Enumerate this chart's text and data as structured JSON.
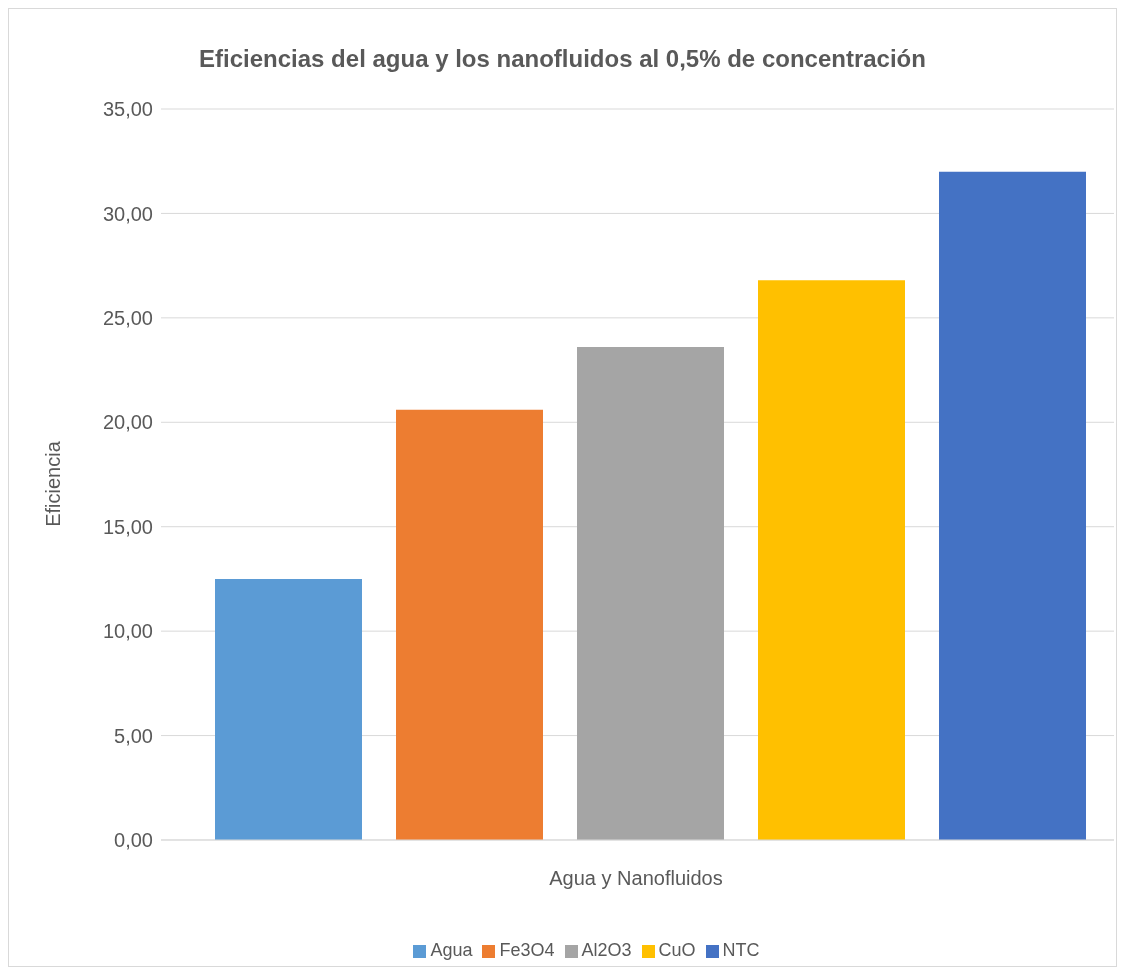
{
  "chart_data": {
    "type": "bar",
    "title": "Eficiencias del agua y los nanofluidos al 0,5% de concentración",
    "xlabel": "Agua y Nanofluidos",
    "ylabel": "Eficiencia",
    "categories": [
      null
    ],
    "series": [
      {
        "name": "Agua",
        "color": "#5b9bd5",
        "values": [
          12.5
        ]
      },
      {
        "name": "Fe3O4",
        "color": "#ed7d31",
        "values": [
          20.6
        ]
      },
      {
        "name": "Al2O3",
        "color": "#a5a5a5",
        "values": [
          23.6
        ]
      },
      {
        "name": "CuO",
        "color": "#ffc000",
        "values": [
          26.8
        ]
      },
      {
        "name": "NTC",
        "color": "#4472c4",
        "values": [
          32.0
        ]
      }
    ],
    "ylim": [
      0,
      35
    ],
    "yticks": [
      {
        "value": 0,
        "label": "0,00"
      },
      {
        "value": 5,
        "label": "5,00"
      },
      {
        "value": 10,
        "label": "10,00"
      },
      {
        "value": 15,
        "label": "15,00"
      },
      {
        "value": 20,
        "label": "20,00"
      },
      {
        "value": 25,
        "label": "25,00"
      },
      {
        "value": 30,
        "label": "30,00"
      },
      {
        "value": 35,
        "label": "35,00"
      }
    ],
    "grid": "y",
    "legend": "bottom"
  }
}
